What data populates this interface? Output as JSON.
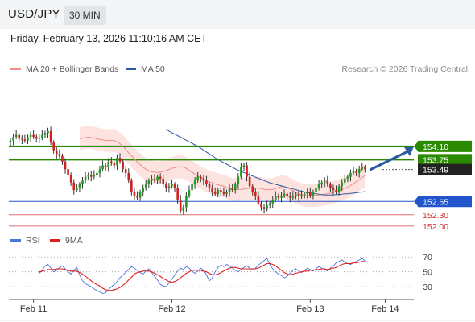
{
  "header": {
    "pair": "USD/JPY",
    "timeframe": "30 MIN",
    "datetime": "Friday, February 13, 2026 11:10:16 AM CET"
  },
  "legend": {
    "main": [
      {
        "label": "MA 20 + Bollinger Bands",
        "color": "#f08c8c"
      },
      {
        "label": "MA 50",
        "color": "#2b5aa3"
      }
    ],
    "rsi": [
      {
        "label": "RSI",
        "color": "#4a74d6"
      },
      {
        "label": "9MA",
        "color": "#e02020"
      }
    ]
  },
  "credit": "Research © 2026 Trading Central",
  "colors": {
    "up": "#1e9b1e",
    "down": "#d02020",
    "bull": "#2a8a00",
    "support": "#2255cc",
    "resistance": "#e07070"
  },
  "chart_data": [
    {
      "type": "candlestick",
      "instrument": "USD/JPY",
      "ylim": [
        151.85,
        155.75
      ],
      "x_ticks": [
        {
          "label": "Feb 11",
          "index": 8
        },
        {
          "label": "Feb 12",
          "index": 56
        },
        {
          "label": "Feb 13",
          "index": 104
        },
        {
          "label": "Feb 14",
          "index": 130
        }
      ],
      "levels": [
        {
          "label": "154.10",
          "value": 154.1,
          "style": "bull-target",
          "color": "#2a8a00"
        },
        {
          "label": "153.75",
          "value": 153.75,
          "style": "bull-pivot",
          "color": "#2a8a00"
        },
        {
          "label": "152.65",
          "value": 152.65,
          "style": "support",
          "color": "#2255cc"
        },
        {
          "label": "152.30",
          "value": 152.3,
          "style": "support",
          "color": "#e07070"
        },
        {
          "label": "152.00",
          "value": 152.0,
          "style": "support",
          "color": "#e07070"
        }
      ],
      "last_price": {
        "label": "153.49",
        "value": 153.49
      },
      "closes": [
        154.25,
        154.35,
        154.4,
        154.3,
        154.28,
        154.25,
        154.35,
        154.4,
        154.35,
        154.3,
        154.32,
        154.4,
        154.45,
        154.5,
        154.2,
        154.0,
        153.9,
        153.85,
        153.7,
        153.5,
        153.35,
        153.15,
        152.95,
        153.0,
        153.1,
        153.2,
        153.3,
        153.35,
        153.3,
        153.35,
        153.4,
        153.5,
        153.6,
        153.55,
        153.7,
        153.65,
        153.6,
        153.8,
        153.7,
        153.5,
        153.4,
        153.2,
        152.9,
        152.8,
        152.75,
        152.9,
        153.0,
        153.1,
        153.2,
        153.25,
        153.2,
        153.3,
        153.25,
        153.1,
        153.0,
        153.05,
        153.1,
        153.0,
        152.7,
        152.4,
        152.5,
        152.8,
        152.95,
        153.1,
        153.2,
        153.3,
        153.25,
        153.2,
        153.1,
        153.0,
        152.9,
        152.85,
        152.95,
        152.9,
        152.85,
        152.9,
        153.0,
        152.95,
        153.1,
        153.3,
        153.55,
        153.6,
        153.3,
        153.05,
        152.9,
        152.8,
        152.6,
        152.5,
        152.45,
        152.55,
        152.6,
        152.7,
        152.8,
        152.75,
        152.8,
        152.85,
        152.8,
        152.75,
        152.8,
        152.85,
        152.78,
        152.82,
        152.85,
        152.9,
        152.8,
        152.9,
        153.0,
        153.1,
        153.15,
        153.2,
        153.1,
        153.0,
        152.95,
        152.9,
        153.05,
        153.15,
        153.25,
        153.3,
        153.4,
        153.45,
        153.4,
        153.5,
        153.55,
        153.5
      ],
      "ma20": [
        154.3,
        154.32,
        154.33,
        154.34,
        154.33,
        154.32,
        154.3,
        154.28,
        154.27,
        154.25,
        154.25,
        154.26,
        154.25,
        154.22,
        154.17,
        154.1,
        154.02,
        153.93,
        153.85,
        153.77,
        153.69,
        153.62,
        153.55,
        153.5,
        153.46,
        153.43,
        153.42,
        153.41,
        153.42,
        153.44,
        153.46,
        153.49,
        153.52,
        153.54,
        153.56,
        153.56,
        153.55,
        153.52,
        153.47,
        153.42,
        153.37,
        153.32,
        153.28,
        153.24,
        153.2,
        153.17,
        153.14,
        153.11,
        153.09,
        153.07,
        153.05,
        153.02,
        152.99,
        152.97,
        152.96,
        152.96,
        152.97,
        152.98,
        152.99,
        153.0,
        153.0,
        153.0,
        153.0,
        152.99,
        152.97,
        152.96,
        152.96,
        152.97,
        152.99,
        153.02,
        153.04,
        153.04,
        153.01,
        152.97,
        152.93,
        152.89,
        152.86,
        152.83,
        152.81,
        152.8,
        152.8,
        152.8,
        152.81,
        152.82,
        152.83,
        152.84,
        152.85,
        152.87,
        152.89,
        152.92,
        152.94,
        152.97,
        153.0,
        153.03,
        153.07,
        153.12,
        153.17,
        153.22,
        153.28,
        153.33
      ],
      "ma50": [
        154.55,
        154.5,
        154.46,
        154.42,
        154.38,
        154.34,
        154.3,
        154.26,
        154.22,
        154.18,
        154.14,
        154.1,
        154.05,
        154.0,
        153.95,
        153.9,
        153.85,
        153.8,
        153.75,
        153.71,
        153.67,
        153.63,
        153.59,
        153.55,
        153.51,
        153.47,
        153.44,
        153.41,
        153.38,
        153.35,
        153.32,
        153.29,
        153.26,
        153.23,
        153.2,
        153.17,
        153.14,
        153.12,
        153.1,
        153.08,
        153.06,
        153.04,
        153.02,
        153.0,
        152.98,
        152.96,
        152.94,
        152.92,
        152.9,
        152.88,
        152.87,
        152.86,
        152.85,
        152.84,
        152.83,
        152.82,
        152.82,
        152.82,
        152.82,
        152.83,
        152.83,
        152.84,
        152.85,
        152.85,
        152.86,
        152.87,
        152.88,
        152.89,
        152.9,
        152.91
      ],
      "bb_width": 0.3
    },
    {
      "type": "line",
      "name": "RSI",
      "ylim": [
        15,
        80
      ],
      "y_ticks": [
        {
          "label": "70",
          "value": 70
        },
        {
          "label": "50",
          "value": 50
        },
        {
          "label": "30",
          "value": 30
        }
      ],
      "series": [
        {
          "name": "RSI",
          "values": [
            48,
            52,
            58,
            60,
            55,
            50,
            52,
            56,
            58,
            54,
            50,
            47,
            52,
            56,
            46,
            38,
            34,
            32,
            30,
            27,
            25,
            23,
            21,
            22,
            26,
            30,
            33,
            37,
            42,
            46,
            49,
            53,
            57,
            55,
            52,
            49,
            47,
            51,
            54,
            49,
            44,
            39,
            33,
            31,
            30,
            35,
            40,
            46,
            51,
            55,
            53,
            57,
            55,
            51,
            48,
            51,
            55,
            52,
            46,
            38,
            42,
            50,
            56,
            59,
            57,
            60,
            58,
            55,
            52,
            50,
            53,
            56,
            58,
            55,
            52,
            55,
            59,
            62,
            65,
            68,
            60,
            54,
            50,
            47,
            45,
            42,
            44,
            48,
            52,
            54,
            51,
            49,
            52,
            55,
            53,
            51,
            54,
            57,
            55,
            53,
            51,
            55,
            58,
            62,
            64,
            66,
            63,
            61,
            60,
            62,
            64,
            66,
            68,
            65
          ]
        },
        {
          "name": "9MA",
          "values": [
            50,
            51,
            52,
            53,
            53,
            53,
            54,
            54,
            54,
            53,
            52,
            51,
            51,
            51,
            49,
            47,
            44,
            41,
            38,
            35,
            33,
            31,
            28,
            26,
            25,
            25,
            26,
            27,
            29,
            32,
            35,
            39,
            43,
            47,
            49,
            50,
            51,
            52,
            51,
            50,
            48,
            46,
            44,
            41,
            39,
            37,
            36,
            37,
            39,
            42,
            45,
            48,
            50,
            52,
            52,
            52,
            52,
            51,
            50,
            48,
            46,
            46,
            47,
            49,
            51,
            53,
            55,
            56,
            56,
            55,
            54,
            54,
            54,
            54,
            54,
            54,
            55,
            57,
            59,
            61,
            61,
            60,
            58,
            55,
            52,
            49,
            47,
            46,
            47,
            48,
            49,
            50,
            51,
            51,
            52,
            52,
            53,
            53,
            54,
            54,
            53,
            54,
            55,
            56,
            58,
            60,
            61,
            61,
            61,
            62,
            62,
            63,
            64,
            64
          ]
        }
      ]
    }
  ]
}
